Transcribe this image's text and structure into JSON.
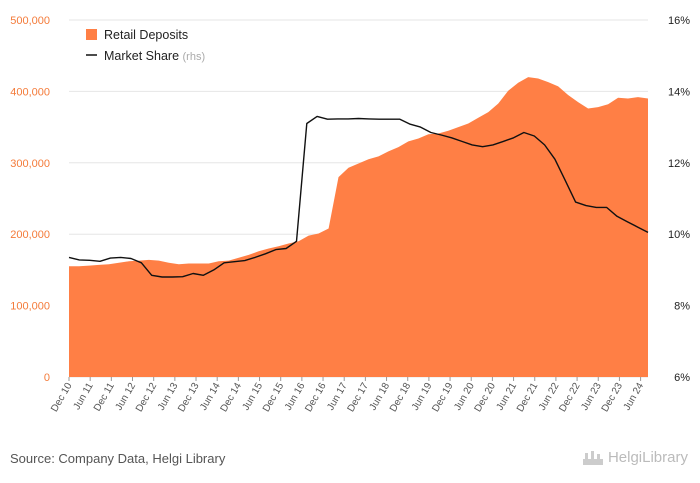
{
  "chart_data": {
    "type": "area",
    "title": "",
    "legend_placement": "top-left",
    "grid": true,
    "x_tick_labels": [
      "Dec 10",
      "Jun 11",
      "Dec 11",
      "Jun 12",
      "Dec 12",
      "Jun 13",
      "Dec 13",
      "Jun 14",
      "Dec 14",
      "Jun 15",
      "Dec 15",
      "Jun 16",
      "Dec 16",
      "Jun 17",
      "Dec 17",
      "Jun 18",
      "Dec 18",
      "Jun 19",
      "Dec 19",
      "Jun 20",
      "Dec 20",
      "Jun 21",
      "Dec 21",
      "Jun 22",
      "Dec 22",
      "Jun 23",
      "Dec 23",
      "Jun 24"
    ],
    "y_left": {
      "ylim": [
        0,
        500000
      ],
      "ticks": [
        0,
        100000,
        200000,
        300000,
        400000,
        500000
      ],
      "tick_labels": [
        "0",
        "100,000",
        "200,000",
        "300,000",
        "400,000",
        "500,000"
      ]
    },
    "y_right": {
      "ylim": [
        6,
        16
      ],
      "ticks": [
        6,
        8,
        10,
        12,
        14,
        16
      ],
      "tick_labels": [
        "6%",
        "8%",
        "10%",
        "12%",
        "14%",
        "16%"
      ]
    },
    "series": [
      {
        "name": "Retail Deposits",
        "type": "area",
        "axis": "left",
        "color": "#ff7f45",
        "values": [
          155000,
          155000,
          156000,
          157000,
          158000,
          160000,
          162000,
          163000,
          164000,
          163000,
          160000,
          158000,
          159000,
          159000,
          159000,
          162000,
          163000,
          167000,
          171000,
          176000,
          180000,
          183000,
          187000,
          190000,
          198000,
          201000,
          208000,
          280000,
          293000,
          299000,
          305000,
          309000,
          316000,
          322000,
          330000,
          334000,
          340000,
          341000,
          345000,
          350000,
          355000,
          363000,
          371000,
          383000,
          401000,
          412000,
          420000,
          418000,
          413000,
          407000,
          395000,
          385000,
          376000,
          378000,
          382000,
          391000,
          390000,
          392000,
          390000
        ]
      },
      {
        "name": "Market Share",
        "type": "line",
        "axis": "right",
        "color": "#111111",
        "values": [
          9.35,
          9.28,
          9.27,
          9.24,
          9.33,
          9.35,
          9.32,
          9.2,
          8.85,
          8.8,
          8.8,
          8.81,
          8.9,
          8.85,
          9.0,
          9.2,
          9.23,
          9.26,
          9.35,
          9.45,
          9.57,
          9.6,
          9.8,
          13.1,
          13.3,
          13.22,
          13.23,
          13.23,
          13.24,
          13.23,
          13.22,
          13.22,
          13.22,
          13.08,
          13.0,
          12.85,
          12.78,
          12.7,
          12.6,
          12.5,
          12.45,
          12.5,
          12.6,
          12.7,
          12.85,
          12.75,
          12.5,
          12.1,
          11.5,
          10.9,
          10.8,
          10.75,
          10.75,
          10.5,
          10.35,
          10.2,
          10.05
        ]
      }
    ],
    "legend": [
      {
        "label": "Retail Deposits",
        "suffix": ""
      },
      {
        "label": "Market Share",
        "suffix": "(rhs)"
      }
    ]
  },
  "footer": {
    "source": "Source: Company Data, Helgi Library",
    "brand": "HelgiLibrary"
  },
  "colors": {
    "area": "#ff7f45",
    "line": "#111111",
    "left_axis": "#f47b3a",
    "grid": "#e6e6e6"
  }
}
